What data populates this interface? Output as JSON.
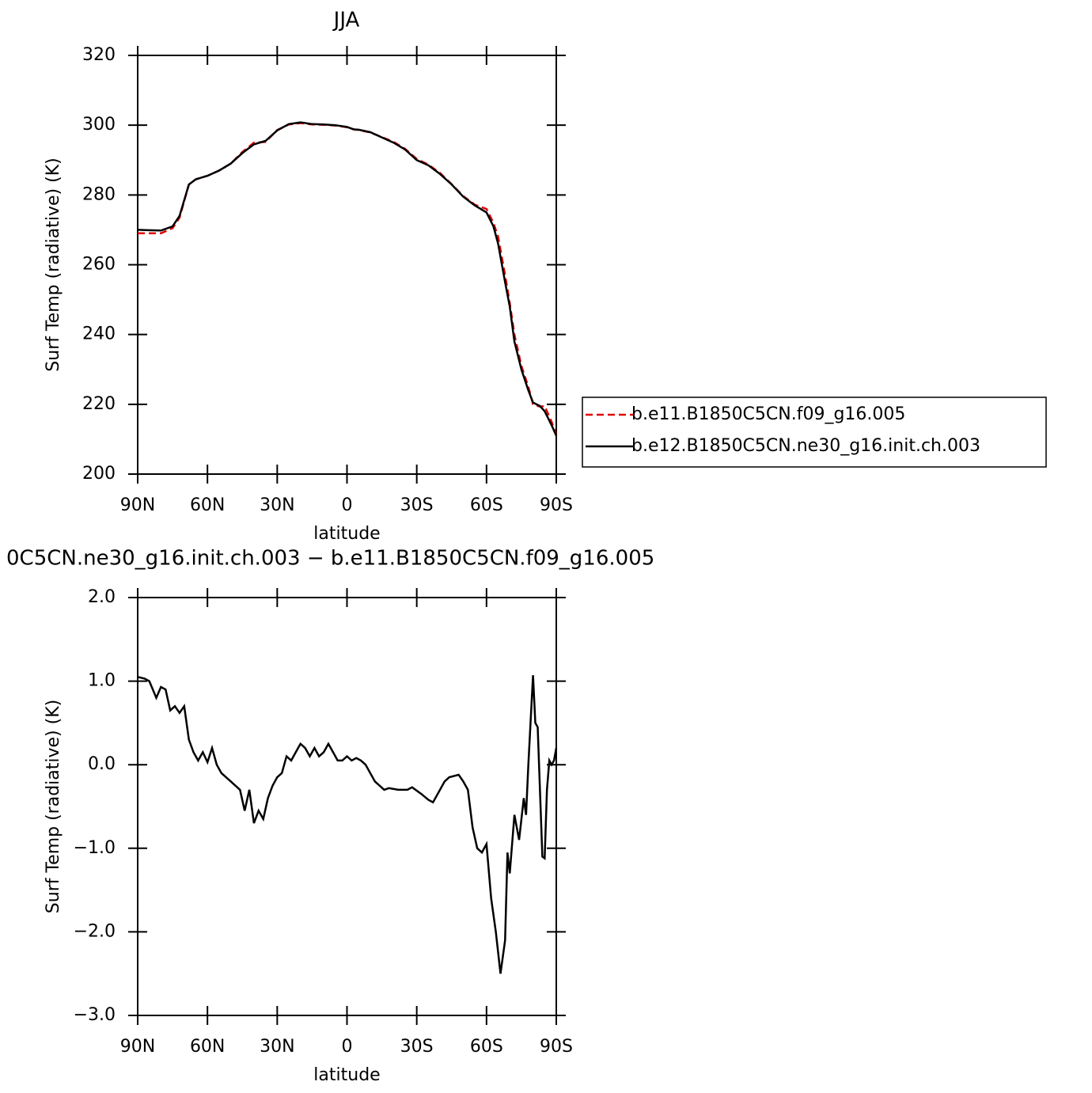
{
  "chart_data": [
    {
      "type": "line",
      "title": "JJA",
      "ylabel": "Surf Temp (radiative) (K)",
      "xlabel": "latitude",
      "x": [
        90,
        85,
        80,
        75,
        72,
        68,
        65,
        60,
        55,
        50,
        45,
        40,
        35,
        30,
        25,
        20,
        15,
        10,
        5,
        0,
        -3,
        -5,
        -10,
        -15,
        -20,
        -25,
        -30,
        -35,
        -40,
        -45,
        -50,
        -55,
        -60,
        -63,
        -65,
        -68,
        -70,
        -72,
        -75,
        -78,
        -80,
        -83,
        -85,
        -88,
        -90
      ],
      "series": [
        {
          "name": "b.e11.B1850C5CN.f09_g16.005",
          "color": "#e00000",
          "dash": true,
          "values": [
            269,
            269,
            269,
            270.5,
            273.5,
            283,
            284.5,
            285.5,
            287,
            289,
            292.3,
            295,
            295.2,
            298.6,
            300.2,
            300.6,
            300.2,
            300.1,
            299.9,
            299.4,
            298.8,
            298.6,
            297.9,
            296.6,
            295.2,
            293.2,
            290.3,
            288.7,
            286.3,
            283.1,
            279.7,
            277.2,
            276,
            272,
            268,
            257,
            249,
            240,
            231,
            225,
            220,
            219.3,
            219.5,
            215,
            211.2
          ]
        },
        {
          "name": "b.e12.B1850C5CN.ne30_g16.init.ch.003",
          "color": "#000000",
          "dash": false,
          "values": [
            270,
            269.9,
            269.8,
            271,
            274,
            283,
            284.5,
            285.5,
            287,
            289,
            292,
            294.5,
            295.5,
            298.5,
            300.3,
            300.8,
            300.3,
            300.2,
            300,
            299.5,
            298.8,
            298.7,
            298,
            296.5,
            295,
            293,
            290,
            288.5,
            286,
            283,
            279.5,
            277,
            275,
            271,
            266,
            255,
            248,
            238,
            230,
            224,
            220.5,
            219.5,
            218,
            214,
            211
          ]
        }
      ],
      "xlim": [
        90,
        -90
      ],
      "xticks": [
        {
          "value": 90,
          "label": "90N"
        },
        {
          "value": 60,
          "label": "60N"
        },
        {
          "value": 30,
          "label": "30N"
        },
        0,
        {
          "value": -30,
          "label": "30S"
        },
        {
          "value": -60,
          "label": "60S"
        },
        {
          "value": -90,
          "label": "90S"
        }
      ],
      "ylim": [
        200,
        320
      ],
      "yticks": [
        200,
        220,
        240,
        260,
        280,
        300,
        320
      ],
      "legend": "right"
    },
    {
      "type": "line",
      "title": "0C5CN.ne30_g16.init.ch.003 − b.e11.B1850C5CN.f09_g16.005",
      "ylabel": "Surf Temp (radiative) (K)",
      "xlabel": "latitude",
      "x": [
        90,
        87,
        85,
        82,
        80,
        78,
        76,
        74,
        72,
        70,
        68,
        66,
        64,
        62,
        60,
        58,
        56,
        54,
        50,
        46,
        44,
        42,
        40,
        38,
        36,
        34,
        32,
        30,
        28,
        26,
        24,
        22,
        20,
        18,
        16,
        14,
        12,
        10,
        8,
        6,
        4,
        2,
        0,
        -2,
        -4,
        -6,
        -8,
        -10,
        -12,
        -14,
        -16,
        -18,
        -22,
        -26,
        -28,
        -32,
        -35,
        -37,
        -39,
        -42,
        -44,
        -48,
        -50,
        -52,
        -54,
        -56,
        -58,
        -60,
        -62,
        -64,
        -66,
        -68,
        -69,
        -70,
        -72,
        -74,
        -76,
        -77,
        -78,
        -80,
        -81,
        -82,
        -84,
        -85,
        -86,
        -87,
        -88,
        -89,
        -90
      ],
      "values": [
        1.05,
        1.03,
        1.0,
        0.8,
        0.93,
        0.9,
        0.65,
        0.7,
        0.62,
        0.7,
        0.3,
        0.15,
        0.05,
        0.15,
        0.03,
        0.2,
        0.0,
        -0.1,
        -0.2,
        -0.3,
        -0.55,
        -0.3,
        -0.7,
        -0.55,
        -0.65,
        -0.4,
        -0.25,
        -0.15,
        -0.1,
        0.1,
        0.05,
        0.15,
        0.25,
        0.2,
        0.1,
        0.2,
        0.1,
        0.15,
        0.25,
        0.15,
        0.05,
        0.05,
        0.1,
        0.05,
        0.08,
        0.05,
        0.0,
        -0.1,
        -0.2,
        -0.25,
        -0.3,
        -0.28,
        -0.3,
        -0.3,
        -0.27,
        -0.35,
        -0.42,
        -0.45,
        -0.35,
        -0.2,
        -0.15,
        -0.12,
        -0.2,
        -0.3,
        -0.75,
        -1.0,
        -1.05,
        -0.95,
        -1.6,
        -2.0,
        -2.5,
        -2.1,
        -1.05,
        -1.3,
        -0.6,
        -0.9,
        -0.4,
        -0.6,
        0.0,
        1.07,
        0.5,
        0.45,
        -1.1,
        -1.12,
        -0.3,
        0.05,
        0.0,
        0.05,
        0.2
      ],
      "color": "#000000",
      "xlim": [
        90,
        -90
      ],
      "xticks": [
        {
          "value": 90,
          "label": "90N"
        },
        {
          "value": 60,
          "label": "60N"
        },
        {
          "value": 30,
          "label": "30N"
        },
        0,
        {
          "value": -30,
          "label": "30S"
        },
        {
          "value": -60,
          "label": "60S"
        },
        {
          "value": -90,
          "label": "90S"
        }
      ],
      "ylim": [
        -3,
        2
      ],
      "yticks": [
        {
          "value": -3,
          "label": "−3.0"
        },
        {
          "value": -2,
          "label": "−2.0"
        },
        {
          "value": -1,
          "label": "−1.0"
        },
        {
          "value": 0,
          "label": "0.0"
        },
        {
          "value": 1,
          "label": "1.0"
        },
        {
          "value": 2,
          "label": "2.0"
        }
      ]
    }
  ]
}
